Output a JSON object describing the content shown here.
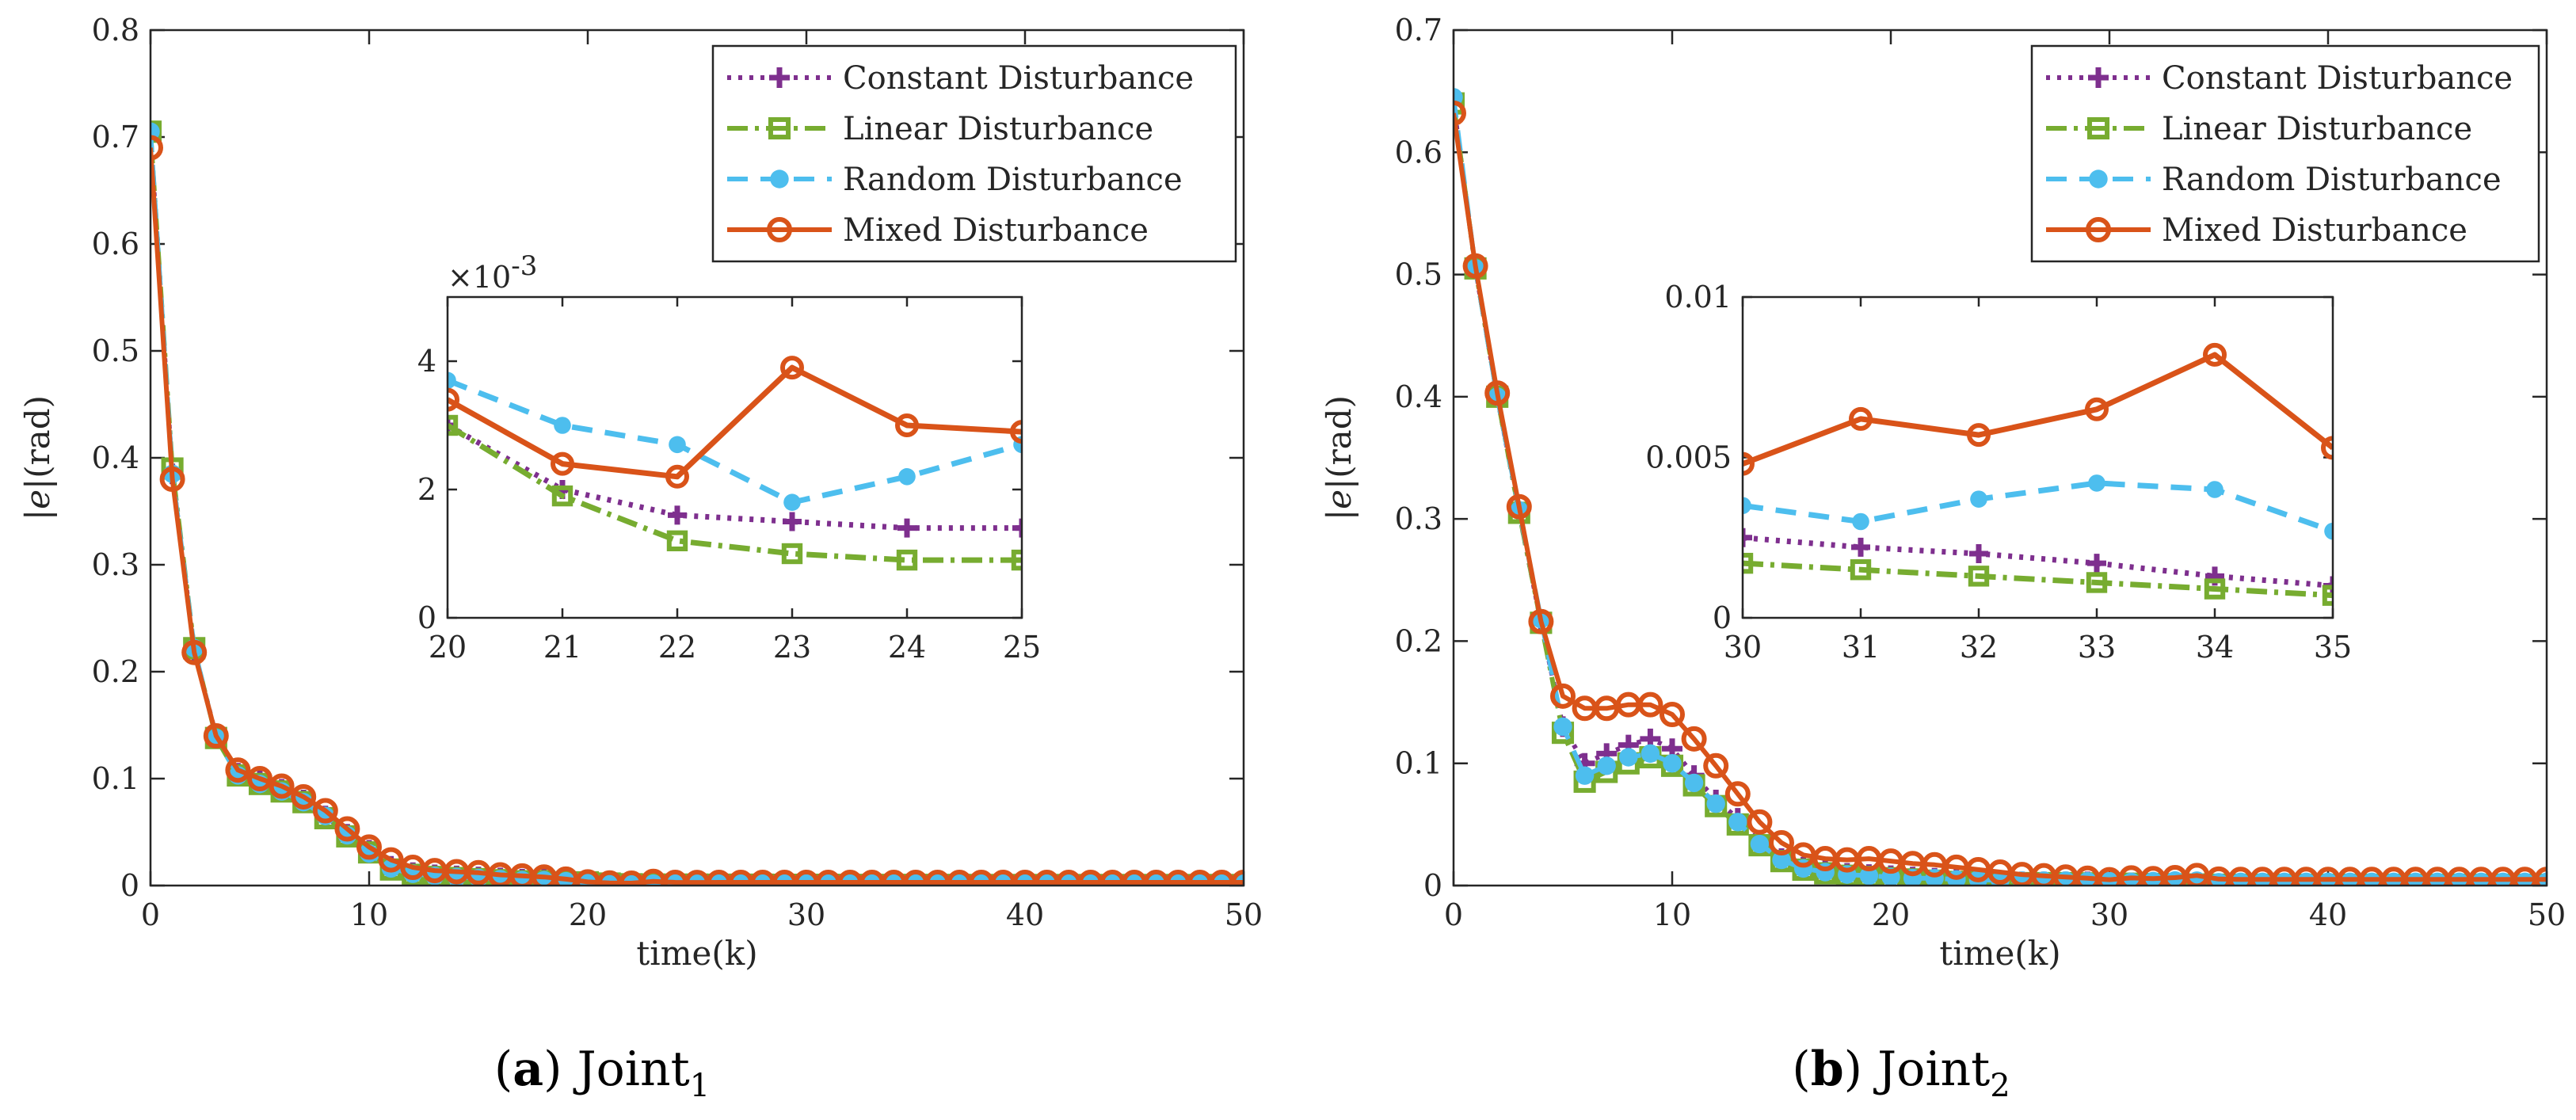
{
  "chart_data": [
    {
      "type": "line",
      "id": "a",
      "caption_letter": "a",
      "caption_text": "Joint",
      "caption_sub": "1",
      "xlabel": "time(k)",
      "ylabel_var": "e",
      "ylabel_unit": "(rad)",
      "xlim": [
        0,
        50
      ],
      "ylim": [
        0,
        0.8
      ],
      "xticks": [
        0,
        10,
        20,
        30,
        40,
        50
      ],
      "yticks": [
        0,
        0.1,
        0.2,
        0.3,
        0.4,
        0.5,
        0.6,
        0.7,
        0.8
      ],
      "ytick_labels": [
        "0",
        "0.1",
        "0.2",
        "0.3",
        "0.4",
        "0.5",
        "0.6",
        "0.7",
        "0.8"
      ],
      "x": [
        0,
        1,
        2,
        3,
        4,
        5,
        6,
        7,
        8,
        9,
        10,
        11,
        12,
        13,
        14,
        15,
        16,
        17,
        18,
        19,
        20,
        21,
        22,
        23,
        24,
        25,
        26,
        27,
        28,
        29,
        30,
        31,
        32,
        33,
        34,
        35,
        36,
        37,
        38,
        39,
        40,
        41,
        42,
        43,
        44,
        45,
        46,
        47,
        48,
        49,
        50
      ],
      "legend_position": "top-right",
      "series": [
        {
          "name": "Constant Disturbance",
          "color": "#7E2F8E",
          "values": [
            0.7,
            0.385,
            0.22,
            0.14,
            0.105,
            0.098,
            0.09,
            0.08,
            0.065,
            0.048,
            0.033,
            0.018,
            0.012,
            0.01,
            0.009,
            0.008,
            0.007,
            0.006,
            0.006,
            0.004,
            0.003,
            0.002,
            0.0016,
            0.0015,
            0.0014,
            0.0014,
            0.0013,
            0.0012,
            0.0012,
            0.0011,
            0.0011,
            0.001,
            0.001,
            0.001,
            0.001,
            0.001,
            0.001,
            0.001,
            0.001,
            0.001,
            0.001,
            0.001,
            0.001,
            0.001,
            0.001,
            0.001,
            0.001,
            0.001,
            0.001,
            0.001,
            0.001
          ]
        },
        {
          "name": "Linear Disturbance",
          "color": "#77AC30",
          "values": [
            0.705,
            0.39,
            0.222,
            0.138,
            0.103,
            0.095,
            0.088,
            0.078,
            0.063,
            0.046,
            0.031,
            0.015,
            0.01,
            0.008,
            0.007,
            0.006,
            0.005,
            0.004,
            0.004,
            0.003,
            0.003,
            0.0019,
            0.0012,
            0.001,
            0.0009,
            0.0009,
            0.0008,
            0.0008,
            0.0008,
            0.0007,
            0.0007,
            0.0007,
            0.0006,
            0.0006,
            0.0006,
            0.0006,
            0.0006,
            0.0006,
            0.0005,
            0.0005,
            0.0005,
            0.0005,
            0.0005,
            0.0005,
            0.0005,
            0.0005,
            0.0005,
            0.0005,
            0.0005,
            0.0005,
            0.0005
          ]
        },
        {
          "name": "Random Disturbance",
          "color": "#4DBEEE",
          "values": [
            0.705,
            0.385,
            0.222,
            0.138,
            0.103,
            0.095,
            0.088,
            0.078,
            0.065,
            0.047,
            0.03,
            0.016,
            0.011,
            0.009,
            0.008,
            0.007,
            0.006,
            0.005,
            0.005,
            0.004,
            0.0037,
            0.003,
            0.0027,
            0.0018,
            0.0022,
            0.0027,
            0.0025,
            0.0023,
            0.0022,
            0.002,
            0.002,
            0.002,
            0.002,
            0.002,
            0.002,
            0.002,
            0.002,
            0.002,
            0.002,
            0.002,
            0.002,
            0.002,
            0.002,
            0.002,
            0.002,
            0.002,
            0.002,
            0.002,
            0.002,
            0.002,
            0.002
          ]
        },
        {
          "name": "Mixed Disturbance",
          "color": "#D95319",
          "values": [
            0.69,
            0.38,
            0.218,
            0.14,
            0.108,
            0.1,
            0.093,
            0.083,
            0.07,
            0.053,
            0.036,
            0.024,
            0.017,
            0.014,
            0.013,
            0.012,
            0.01,
            0.009,
            0.008,
            0.006,
            0.0034,
            0.0024,
            0.0022,
            0.0039,
            0.003,
            0.0029,
            0.003,
            0.003,
            0.003,
            0.003,
            0.003,
            0.003,
            0.003,
            0.003,
            0.003,
            0.003,
            0.003,
            0.003,
            0.003,
            0.003,
            0.003,
            0.003,
            0.003,
            0.003,
            0.003,
            0.003,
            0.003,
            0.003,
            0.003,
            0.003,
            0.003
          ]
        }
      ],
      "inset": {
        "xlim": [
          20,
          25
        ],
        "ylim": [
          0,
          0.005
        ],
        "xticks": [
          20,
          21,
          22,
          23,
          24,
          25
        ],
        "yticks": [
          0,
          0.002,
          0.004
        ],
        "ytick_labels": [
          "0",
          "2",
          "4"
        ],
        "exponent_base": "×10",
        "exponent_power": "-3"
      }
    },
    {
      "type": "line",
      "id": "b",
      "caption_letter": "b",
      "caption_text": "Joint",
      "caption_sub": "2",
      "xlabel": "time(k)",
      "ylabel_var": "e",
      "ylabel_unit": "(rad)",
      "xlim": [
        0,
        50
      ],
      "ylim": [
        0,
        0.7
      ],
      "xticks": [
        0,
        10,
        20,
        30,
        40,
        50
      ],
      "yticks": [
        0,
        0.1,
        0.2,
        0.3,
        0.4,
        0.5,
        0.6,
        0.7
      ],
      "ytick_labels": [
        "0",
        "0.1",
        "0.2",
        "0.3",
        "0.4",
        "0.5",
        "0.6",
        "0.7"
      ],
      "x": [
        0,
        1,
        2,
        3,
        4,
        5,
        6,
        7,
        8,
        9,
        10,
        11,
        12,
        13,
        14,
        15,
        16,
        17,
        18,
        19,
        20,
        21,
        22,
        23,
        24,
        25,
        26,
        27,
        28,
        29,
        30,
        31,
        32,
        33,
        34,
        35,
        36,
        37,
        38,
        39,
        40,
        41,
        42,
        43,
        44,
        45,
        46,
        47,
        48,
        49,
        50
      ],
      "legend_position": "top-right",
      "series": [
        {
          "name": "Constant Disturbance",
          "color": "#7E2F8E",
          "values": [
            0.64,
            0.505,
            0.4,
            0.305,
            0.215,
            0.13,
            0.1,
            0.108,
            0.115,
            0.12,
            0.112,
            0.09,
            0.07,
            0.055,
            0.035,
            0.022,
            0.015,
            0.012,
            0.01,
            0.009,
            0.008,
            0.007,
            0.006,
            0.005,
            0.004,
            0.004,
            0.003,
            0.003,
            0.003,
            0.003,
            0.0025,
            0.0022,
            0.002,
            0.0017,
            0.0013,
            0.001,
            0.001,
            0.001,
            0.001,
            0.001,
            0.001,
            0.001,
            0.001,
            0.001,
            0.001,
            0.001,
            0.001,
            0.001,
            0.001,
            0.001,
            0.001
          ]
        },
        {
          "name": "Linear Disturbance",
          "color": "#77AC30",
          "values": [
            0.64,
            0.505,
            0.4,
            0.305,
            0.215,
            0.125,
            0.085,
            0.093,
            0.1,
            0.105,
            0.098,
            0.082,
            0.065,
            0.05,
            0.033,
            0.02,
            0.013,
            0.01,
            0.008,
            0.007,
            0.006,
            0.005,
            0.004,
            0.003,
            0.003,
            0.002,
            0.002,
            0.002,
            0.002,
            0.0018,
            0.0017,
            0.0015,
            0.0013,
            0.0011,
            0.0009,
            0.0007,
            0.0007,
            0.0007,
            0.0007,
            0.0007,
            0.0007,
            0.0007,
            0.0007,
            0.0007,
            0.0007,
            0.0007,
            0.0007,
            0.0007,
            0.0007,
            0.0007,
            0.0007
          ]
        },
        {
          "name": "Random Disturbance",
          "color": "#4DBEEE",
          "values": [
            0.645,
            0.505,
            0.4,
            0.307,
            0.218,
            0.13,
            0.09,
            0.098,
            0.105,
            0.108,
            0.1,
            0.084,
            0.067,
            0.052,
            0.034,
            0.021,
            0.014,
            0.011,
            0.009,
            0.008,
            0.007,
            0.006,
            0.006,
            0.005,
            0.005,
            0.004,
            0.004,
            0.004,
            0.004,
            0.0035,
            0.0035,
            0.003,
            0.0037,
            0.0042,
            0.004,
            0.0027,
            0.003,
            0.003,
            0.003,
            0.003,
            0.003,
            0.003,
            0.003,
            0.003,
            0.003,
            0.003,
            0.003,
            0.003,
            0.003,
            0.003,
            0.003
          ]
        },
        {
          "name": "Mixed Disturbance",
          "color": "#D95319",
          "values": [
            0.632,
            0.507,
            0.403,
            0.31,
            0.216,
            0.155,
            0.145,
            0.145,
            0.148,
            0.148,
            0.14,
            0.12,
            0.098,
            0.075,
            0.052,
            0.035,
            0.025,
            0.022,
            0.021,
            0.022,
            0.02,
            0.018,
            0.017,
            0.015,
            0.013,
            0.011,
            0.009,
            0.008,
            0.007,
            0.006,
            0.0048,
            0.0062,
            0.0057,
            0.0065,
            0.0082,
            0.0053,
            0.005,
            0.005,
            0.005,
            0.005,
            0.005,
            0.005,
            0.005,
            0.005,
            0.005,
            0.005,
            0.005,
            0.005,
            0.005,
            0.005,
            0.005
          ]
        }
      ],
      "inset": {
        "xlim": [
          30,
          35
        ],
        "ylim": [
          0,
          0.01
        ],
        "xticks": [
          30,
          31,
          32,
          33,
          34,
          35
        ],
        "yticks": [
          0,
          0.005,
          0.01
        ],
        "ytick_labels": [
          "0",
          "0.005",
          "0.01"
        ]
      }
    }
  ]
}
